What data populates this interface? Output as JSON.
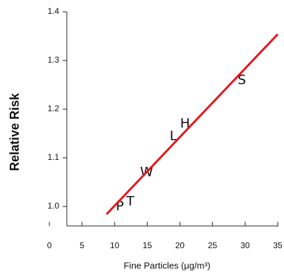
{
  "chart_data": {
    "type": "scatter",
    "xlabel": "Fine Particles (μg/m³)",
    "ylabel": "Relative Risk",
    "xlim": [
      0,
      35
    ],
    "ylim": [
      0.96,
      1.4
    ],
    "xticks": [
      0,
      5,
      10,
      15,
      20,
      25,
      30,
      35
    ],
    "yticks": [
      {
        "value": 1,
        "label": "1.0"
      },
      {
        "value": 1.1,
        "label": "1.1"
      },
      {
        "value": 1.2,
        "label": "1.2"
      },
      {
        "value": 1.3,
        "label": "1.3"
      },
      {
        "value": 1.4,
        "label": "1.4"
      }
    ],
    "points": {
      "labels": [
        "P",
        "T",
        "W",
        "L",
        "H",
        "S"
      ],
      "x": [
        10.8,
        12.4,
        14.9,
        19.0,
        20.8,
        29.5
      ],
      "y": [
        1.0,
        1.01,
        1.07,
        1.144,
        1.17,
        1.259
      ]
    },
    "fit": {
      "color": "#e8141c",
      "x": [
        8.75,
        35
      ],
      "y": [
        0.984,
        1.354
      ]
    }
  }
}
